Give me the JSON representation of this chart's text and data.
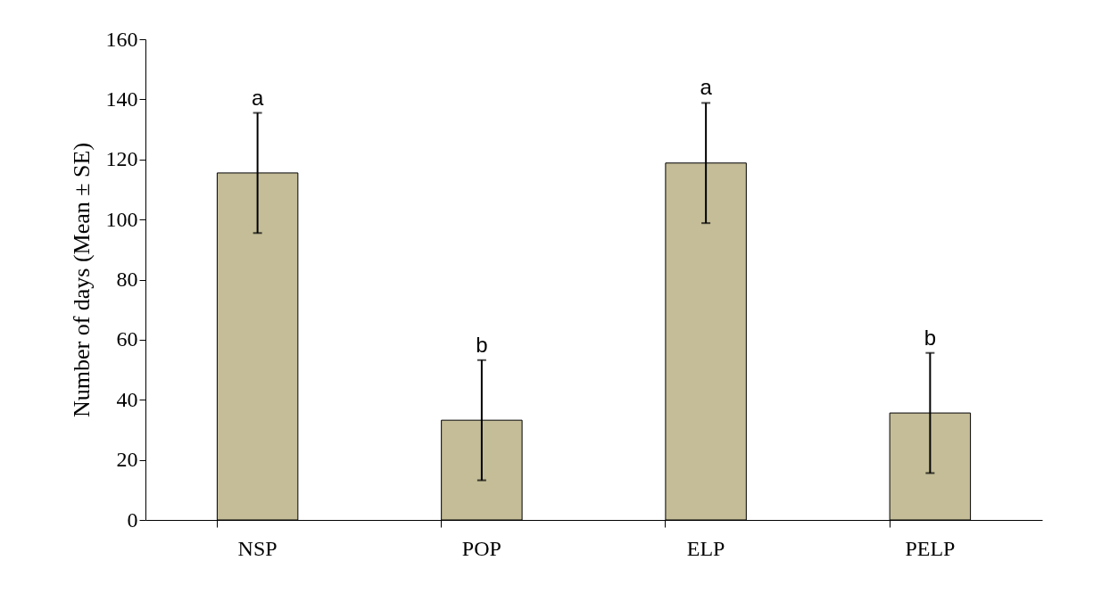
{
  "chart_data": {
    "type": "bar",
    "ylabel": "Number of days (Mean ± SE)",
    "categories": [
      "NSP",
      "POP",
      "ELP",
      "PELP"
    ],
    "values": [
      115.5,
      33.2,
      118.8,
      35.6
    ],
    "errors": [
      20,
      20,
      20,
      20
    ],
    "color": "#c4bd97",
    "ylim": [
      0,
      160
    ],
    "yticks": [
      0,
      20,
      40,
      60,
      80,
      100,
      120,
      140,
      160
    ],
    "grid": false,
    "annotations": [
      "a",
      "b",
      "a",
      "b"
    ]
  }
}
